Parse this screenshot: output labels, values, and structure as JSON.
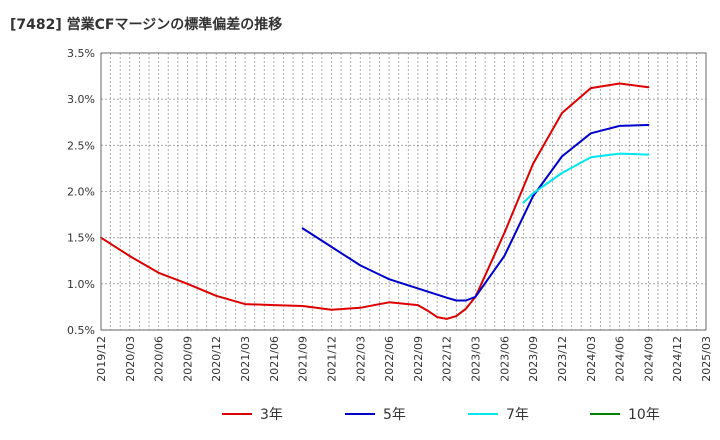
{
  "chart_data": {
    "type": "line",
    "title": "[7482]  営業CFマージンの標準偏差の推移",
    "xlabel": "",
    "ylabel": "",
    "grid": true,
    "legend_position": "bottom",
    "ylim": [
      0.5,
      3.5
    ],
    "y_ticks": [
      "3.5%",
      "3.0%",
      "2.5%",
      "2.0%",
      "1.5%",
      "1.0%",
      "0.5%"
    ],
    "x_ticks": [
      "2019/12",
      "2020/03",
      "2020/06",
      "2020/09",
      "2020/12",
      "2021/03",
      "2021/06",
      "2021/09",
      "2021/12",
      "2022/03",
      "2022/06",
      "2022/09",
      "2022/12",
      "2023/03",
      "2023/06",
      "2023/09",
      "2023/12",
      "2024/03",
      "2024/06",
      "2024/09",
      "2024/12",
      "2025/03"
    ],
    "series": [
      {
        "name": "3年",
        "color": "#dd0000",
        "x": [
          "2019/12",
          "2020/03",
          "2020/06",
          "2020/09",
          "2020/12",
          "2021/03",
          "2021/06",
          "2021/09",
          "2021/12",
          "2022/03",
          "2022/06",
          "2022/09",
          "2022/10",
          "2022/11",
          "2022/12",
          "2023/01",
          "2023/02",
          "2023/03",
          "2023/06",
          "2023/09",
          "2023/12",
          "2024/03",
          "2024/06",
          "2024/09"
        ],
        "values": [
          1.5,
          1.3,
          1.12,
          1.0,
          0.87,
          0.78,
          0.77,
          0.76,
          0.72,
          0.74,
          0.8,
          0.77,
          0.71,
          0.64,
          0.62,
          0.65,
          0.73,
          0.86,
          1.55,
          2.3,
          2.85,
          3.12,
          3.17,
          3.13
        ]
      },
      {
        "name": "5年",
        "color": "#0000cc",
        "x": [
          "2021/09",
          "2021/12",
          "2022/03",
          "2022/06",
          "2022/09",
          "2022/12",
          "2023/01",
          "2023/02",
          "2023/03",
          "2023/06",
          "2023/09",
          "2023/12",
          "2024/03",
          "2024/06",
          "2024/09"
        ],
        "values": [
          1.6,
          1.4,
          1.2,
          1.05,
          0.95,
          0.85,
          0.82,
          0.82,
          0.86,
          1.3,
          1.95,
          2.38,
          2.63,
          2.71,
          2.72
        ]
      },
      {
        "name": "7年",
        "color": "#00e5ee",
        "x": [
          "2023/08",
          "2023/09",
          "2023/12",
          "2024/03",
          "2024/06",
          "2024/09"
        ],
        "values": [
          1.88,
          1.98,
          2.2,
          2.37,
          2.41,
          2.4
        ]
      },
      {
        "name": "10年",
        "color": "#008000",
        "x": [],
        "values": []
      }
    ]
  }
}
